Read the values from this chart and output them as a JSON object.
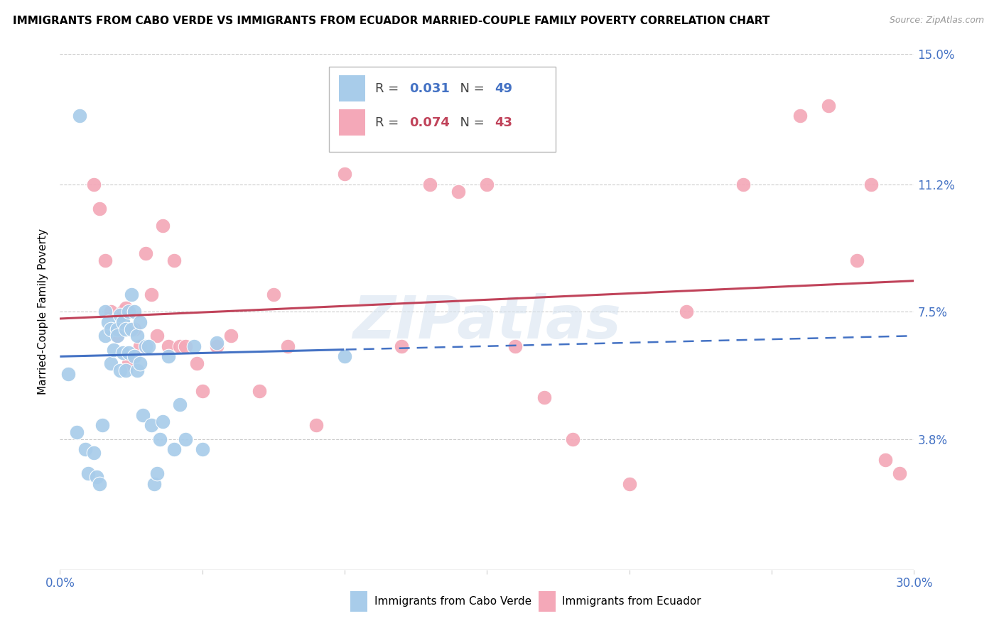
{
  "title": "IMMIGRANTS FROM CABO VERDE VS IMMIGRANTS FROM ECUADOR MARRIED-COUPLE FAMILY POVERTY CORRELATION CHART",
  "source": "Source: ZipAtlas.com",
  "ylabel": "Married-Couple Family Poverty",
  "xlim": [
    0.0,
    0.3
  ],
  "ylim": [
    0.0,
    0.15
  ],
  "yticks": [
    0.038,
    0.075,
    0.112,
    0.15
  ],
  "ytick_labels": [
    "3.8%",
    "7.5%",
    "11.2%",
    "15.0%"
  ],
  "xticks": [
    0.0,
    0.05,
    0.1,
    0.15,
    0.2,
    0.25,
    0.3
  ],
  "xtick_labels": [
    "0.0%",
    "",
    "",
    "",
    "",
    "",
    "30.0%"
  ],
  "cabo_verde_R": 0.031,
  "cabo_verde_N": 49,
  "ecuador_R": 0.074,
  "ecuador_N": 43,
  "cabo_verde_color": "#A8CCEA",
  "ecuador_color": "#F4A8B8",
  "cabo_verde_line_color": "#4472C4",
  "ecuador_line_color": "#C0435A",
  "watermark": "ZIPatlas",
  "cabo_verde_x": [
    0.003,
    0.006,
    0.007,
    0.009,
    0.01,
    0.012,
    0.013,
    0.014,
    0.015,
    0.016,
    0.016,
    0.017,
    0.018,
    0.018,
    0.019,
    0.02,
    0.02,
    0.021,
    0.021,
    0.022,
    0.022,
    0.023,
    0.023,
    0.024,
    0.024,
    0.025,
    0.025,
    0.026,
    0.026,
    0.027,
    0.027,
    0.028,
    0.028,
    0.029,
    0.03,
    0.031,
    0.032,
    0.033,
    0.034,
    0.035,
    0.036,
    0.038,
    0.04,
    0.042,
    0.044,
    0.047,
    0.05,
    0.055,
    0.1
  ],
  "cabo_verde_y": [
    0.057,
    0.04,
    0.132,
    0.035,
    0.028,
    0.034,
    0.027,
    0.025,
    0.042,
    0.075,
    0.068,
    0.072,
    0.07,
    0.06,
    0.064,
    0.07,
    0.068,
    0.074,
    0.058,
    0.072,
    0.063,
    0.07,
    0.058,
    0.075,
    0.063,
    0.08,
    0.07,
    0.075,
    0.062,
    0.068,
    0.058,
    0.072,
    0.06,
    0.045,
    0.065,
    0.065,
    0.042,
    0.025,
    0.028,
    0.038,
    0.043,
    0.062,
    0.035,
    0.048,
    0.038,
    0.065,
    0.035,
    0.066,
    0.062
  ],
  "ecuador_x": [
    0.012,
    0.014,
    0.016,
    0.018,
    0.02,
    0.022,
    0.023,
    0.024,
    0.026,
    0.028,
    0.03,
    0.032,
    0.034,
    0.036,
    0.038,
    0.04,
    0.042,
    0.044,
    0.048,
    0.05,
    0.055,
    0.06,
    0.07,
    0.075,
    0.08,
    0.09,
    0.1,
    0.12,
    0.13,
    0.14,
    0.15,
    0.16,
    0.17,
    0.18,
    0.2,
    0.22,
    0.24,
    0.26,
    0.27,
    0.28,
    0.285,
    0.29,
    0.295
  ],
  "ecuador_y": [
    0.112,
    0.105,
    0.09,
    0.075,
    0.068,
    0.075,
    0.076,
    0.06,
    0.07,
    0.065,
    0.092,
    0.08,
    0.068,
    0.1,
    0.065,
    0.09,
    0.065,
    0.065,
    0.06,
    0.052,
    0.065,
    0.068,
    0.052,
    0.08,
    0.065,
    0.042,
    0.115,
    0.065,
    0.112,
    0.11,
    0.112,
    0.065,
    0.05,
    0.038,
    0.025,
    0.075,
    0.112,
    0.132,
    0.135,
    0.09,
    0.112,
    0.032,
    0.028
  ],
  "background_color": "#ffffff",
  "grid_color": "#cccccc",
  "title_fontsize": 11,
  "axis_label_fontsize": 11,
  "tick_fontsize": 12,
  "legend_fontsize": 13,
  "cv_line_solid_end": 0.1,
  "cv_line_start_y": 0.062,
  "cv_line_end_y": 0.068,
  "ec_line_start_y": 0.073,
  "ec_line_end_y": 0.084
}
